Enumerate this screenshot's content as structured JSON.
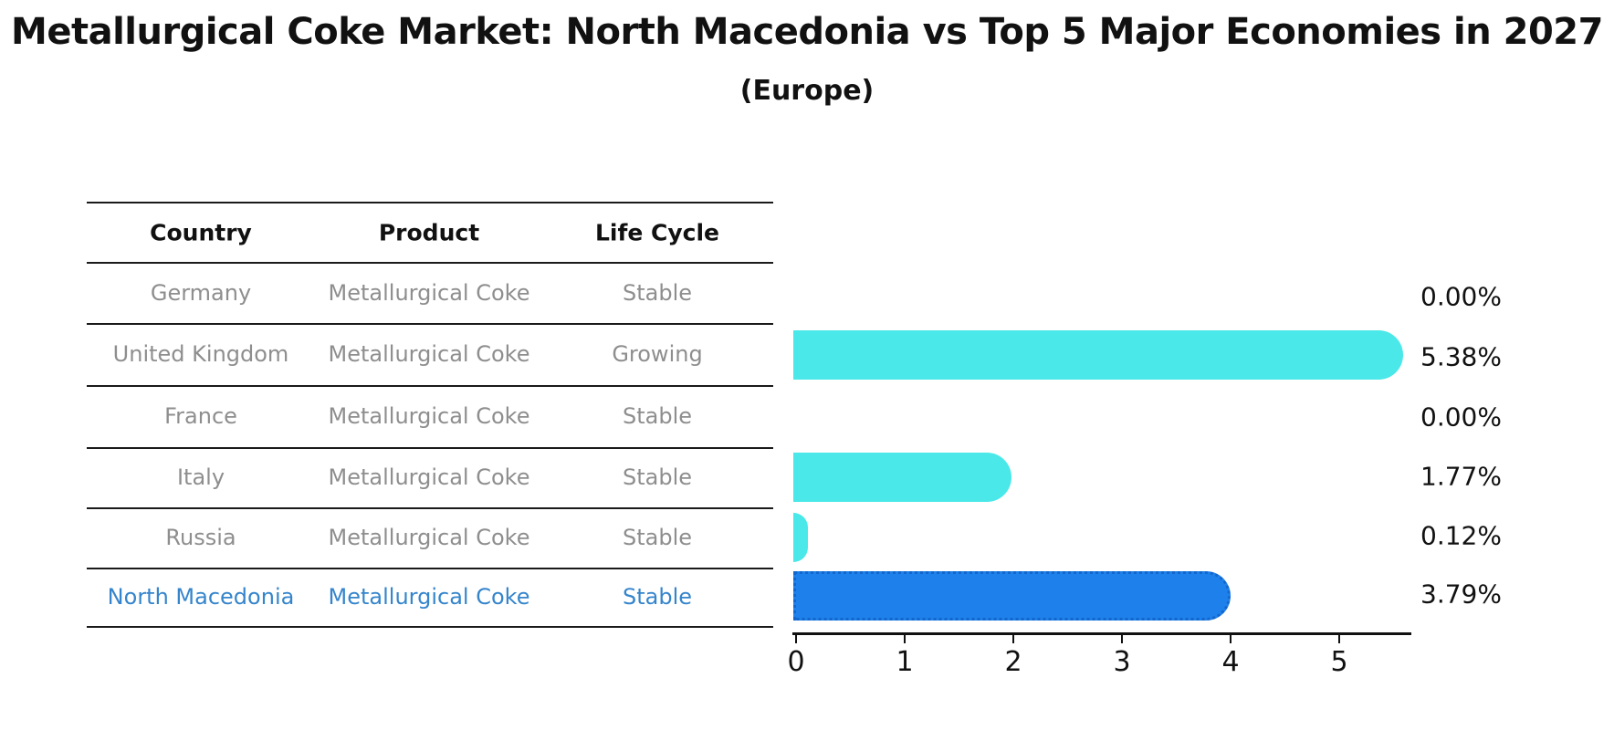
{
  "page": {
    "title": "Metallurgical Coke Market: North Macedonia vs Top 5 Major Economies in 2027",
    "subtitle": "(Europe)"
  },
  "table": {
    "headers": [
      "Country",
      "Product",
      "Life Cycle"
    ],
    "rows": [
      {
        "country": "Germany",
        "product": "Metallurgical Coke",
        "life_cycle": "Stable"
      },
      {
        "country": "United Kingdom",
        "product": "Metallurgical Coke",
        "life_cycle": "Growing"
      },
      {
        "country": "France",
        "product": "Metallurgical Coke",
        "life_cycle": "Stable"
      },
      {
        "country": "Italy",
        "product": "Metallurgical Coke",
        "life_cycle": "Stable"
      },
      {
        "country": "Russia",
        "product": "Metallurgical Coke",
        "life_cycle": "Stable"
      },
      {
        "country": "North Macedonia",
        "product": "Metallurgical Coke",
        "life_cycle": "Stable"
      }
    ],
    "highlight_row_index": 5
  },
  "chart_data": {
    "type": "bar",
    "orientation": "horizontal",
    "title": "Metallurgical Coke Market: North Macedonia vs Top 5 Major Economies in 2027",
    "subtitle": "(Europe)",
    "categories": [
      "Germany",
      "United Kingdom",
      "France",
      "Italy",
      "Russia",
      "North Macedonia"
    ],
    "values": [
      0.0,
      5.38,
      0.0,
      1.77,
      0.12,
      3.79
    ],
    "value_labels": [
      "0.00%",
      "5.38%",
      "0.00%",
      "1.77%",
      "0.12%",
      "3.79%"
    ],
    "xticks": [
      "0",
      "1",
      "2",
      "3",
      "4",
      "5"
    ],
    "xlim": [
      0,
      5.66
    ],
    "grid": false,
    "legend": false,
    "bar_color": "#4AE8E8",
    "highlight_bar_color": "#1E80EA",
    "highlight_bar_edge_style": "dotted",
    "highlight_index": 5,
    "table_text_color": "#8E8E8E",
    "highlight_text_color": "#3585CC"
  }
}
